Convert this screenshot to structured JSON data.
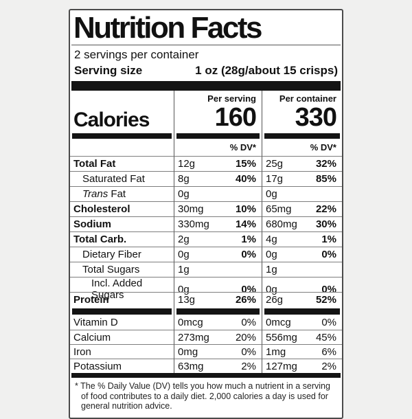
{
  "label": {
    "title": "Nutrition Facts",
    "servings_per_container": "2 servings per container",
    "serving_size": {
      "label": "Serving size",
      "value": "1 oz (28g/about 15 crisps)"
    },
    "calories": {
      "label": "Calories",
      "per_serving_header": "Per serving",
      "per_container_header": "Per container",
      "per_serving_value": "160",
      "per_container_value": "330",
      "dv_header": "% DV*"
    },
    "nutrients": [
      {
        "name": "Total Fat",
        "italic_prefix": "",
        "bold": true,
        "indent": 0,
        "serving_amount": "12g",
        "serving_dv": "15%",
        "container_amount": "25g",
        "container_dv": "32%"
      },
      {
        "name": "Saturated Fat",
        "italic_prefix": "",
        "bold": false,
        "indent": 1,
        "serving_amount": "8g",
        "serving_dv": "40%",
        "container_amount": "17g",
        "container_dv": "85%"
      },
      {
        "name": "Fat",
        "italic_prefix": "Trans",
        "bold": false,
        "indent": 1,
        "serving_amount": "0g",
        "serving_dv": "",
        "container_amount": "0g",
        "container_dv": ""
      },
      {
        "name": "Cholesterol",
        "italic_prefix": "",
        "bold": true,
        "indent": 0,
        "serving_amount": "30mg",
        "serving_dv": "10%",
        "container_amount": "65mg",
        "container_dv": "22%"
      },
      {
        "name": "Sodium",
        "italic_prefix": "",
        "bold": true,
        "indent": 0,
        "serving_amount": "330mg",
        "serving_dv": "14%",
        "container_amount": "680mg",
        "container_dv": "30%"
      },
      {
        "name": "Total Carb.",
        "italic_prefix": "",
        "bold": true,
        "indent": 0,
        "serving_amount": "2g",
        "serving_dv": "1%",
        "container_amount": "4g",
        "container_dv": "1%"
      },
      {
        "name": "Dietary Fiber",
        "italic_prefix": "",
        "bold": false,
        "indent": 1,
        "serving_amount": "0g",
        "serving_dv": "0%",
        "container_amount": "0g",
        "container_dv": "0%"
      },
      {
        "name": "Total Sugars",
        "italic_prefix": "",
        "bold": false,
        "indent": 1,
        "serving_amount": "1g",
        "serving_dv": "",
        "container_amount": "1g",
        "container_dv": ""
      },
      {
        "name": "Incl. Added Sugars",
        "italic_prefix": "",
        "bold": false,
        "indent": 2,
        "serving_amount": "0g",
        "serving_dv": "0%",
        "container_amount": "0g",
        "container_dv": "0%"
      },
      {
        "name": "Protein",
        "italic_prefix": "",
        "bold": true,
        "indent": 0,
        "serving_amount": "13g",
        "serving_dv": "26%",
        "container_amount": "26g",
        "container_dv": "52%"
      }
    ],
    "micronutrients": [
      {
        "name": "Vitamin D",
        "serving_amount": "0mcg",
        "serving_dv": "0%",
        "container_amount": "0mcg",
        "container_dv": "0%"
      },
      {
        "name": "Calcium",
        "serving_amount": "273mg",
        "serving_dv": "20%",
        "container_amount": "556mg",
        "container_dv": "45%"
      },
      {
        "name": "Iron",
        "serving_amount": "0mg",
        "serving_dv": "0%",
        "container_amount": "1mg",
        "container_dv": "6%"
      },
      {
        "name": "Potassium",
        "serving_amount": "63mg",
        "serving_dv": "2%",
        "container_amount": "127mg",
        "container_dv": "2%"
      }
    ],
    "footnote": "* The % Daily Value (DV) tells you how much a nutrient in a serving of food contributes to a daily diet. 2,000 calories a day is used for general nutrition advice."
  }
}
